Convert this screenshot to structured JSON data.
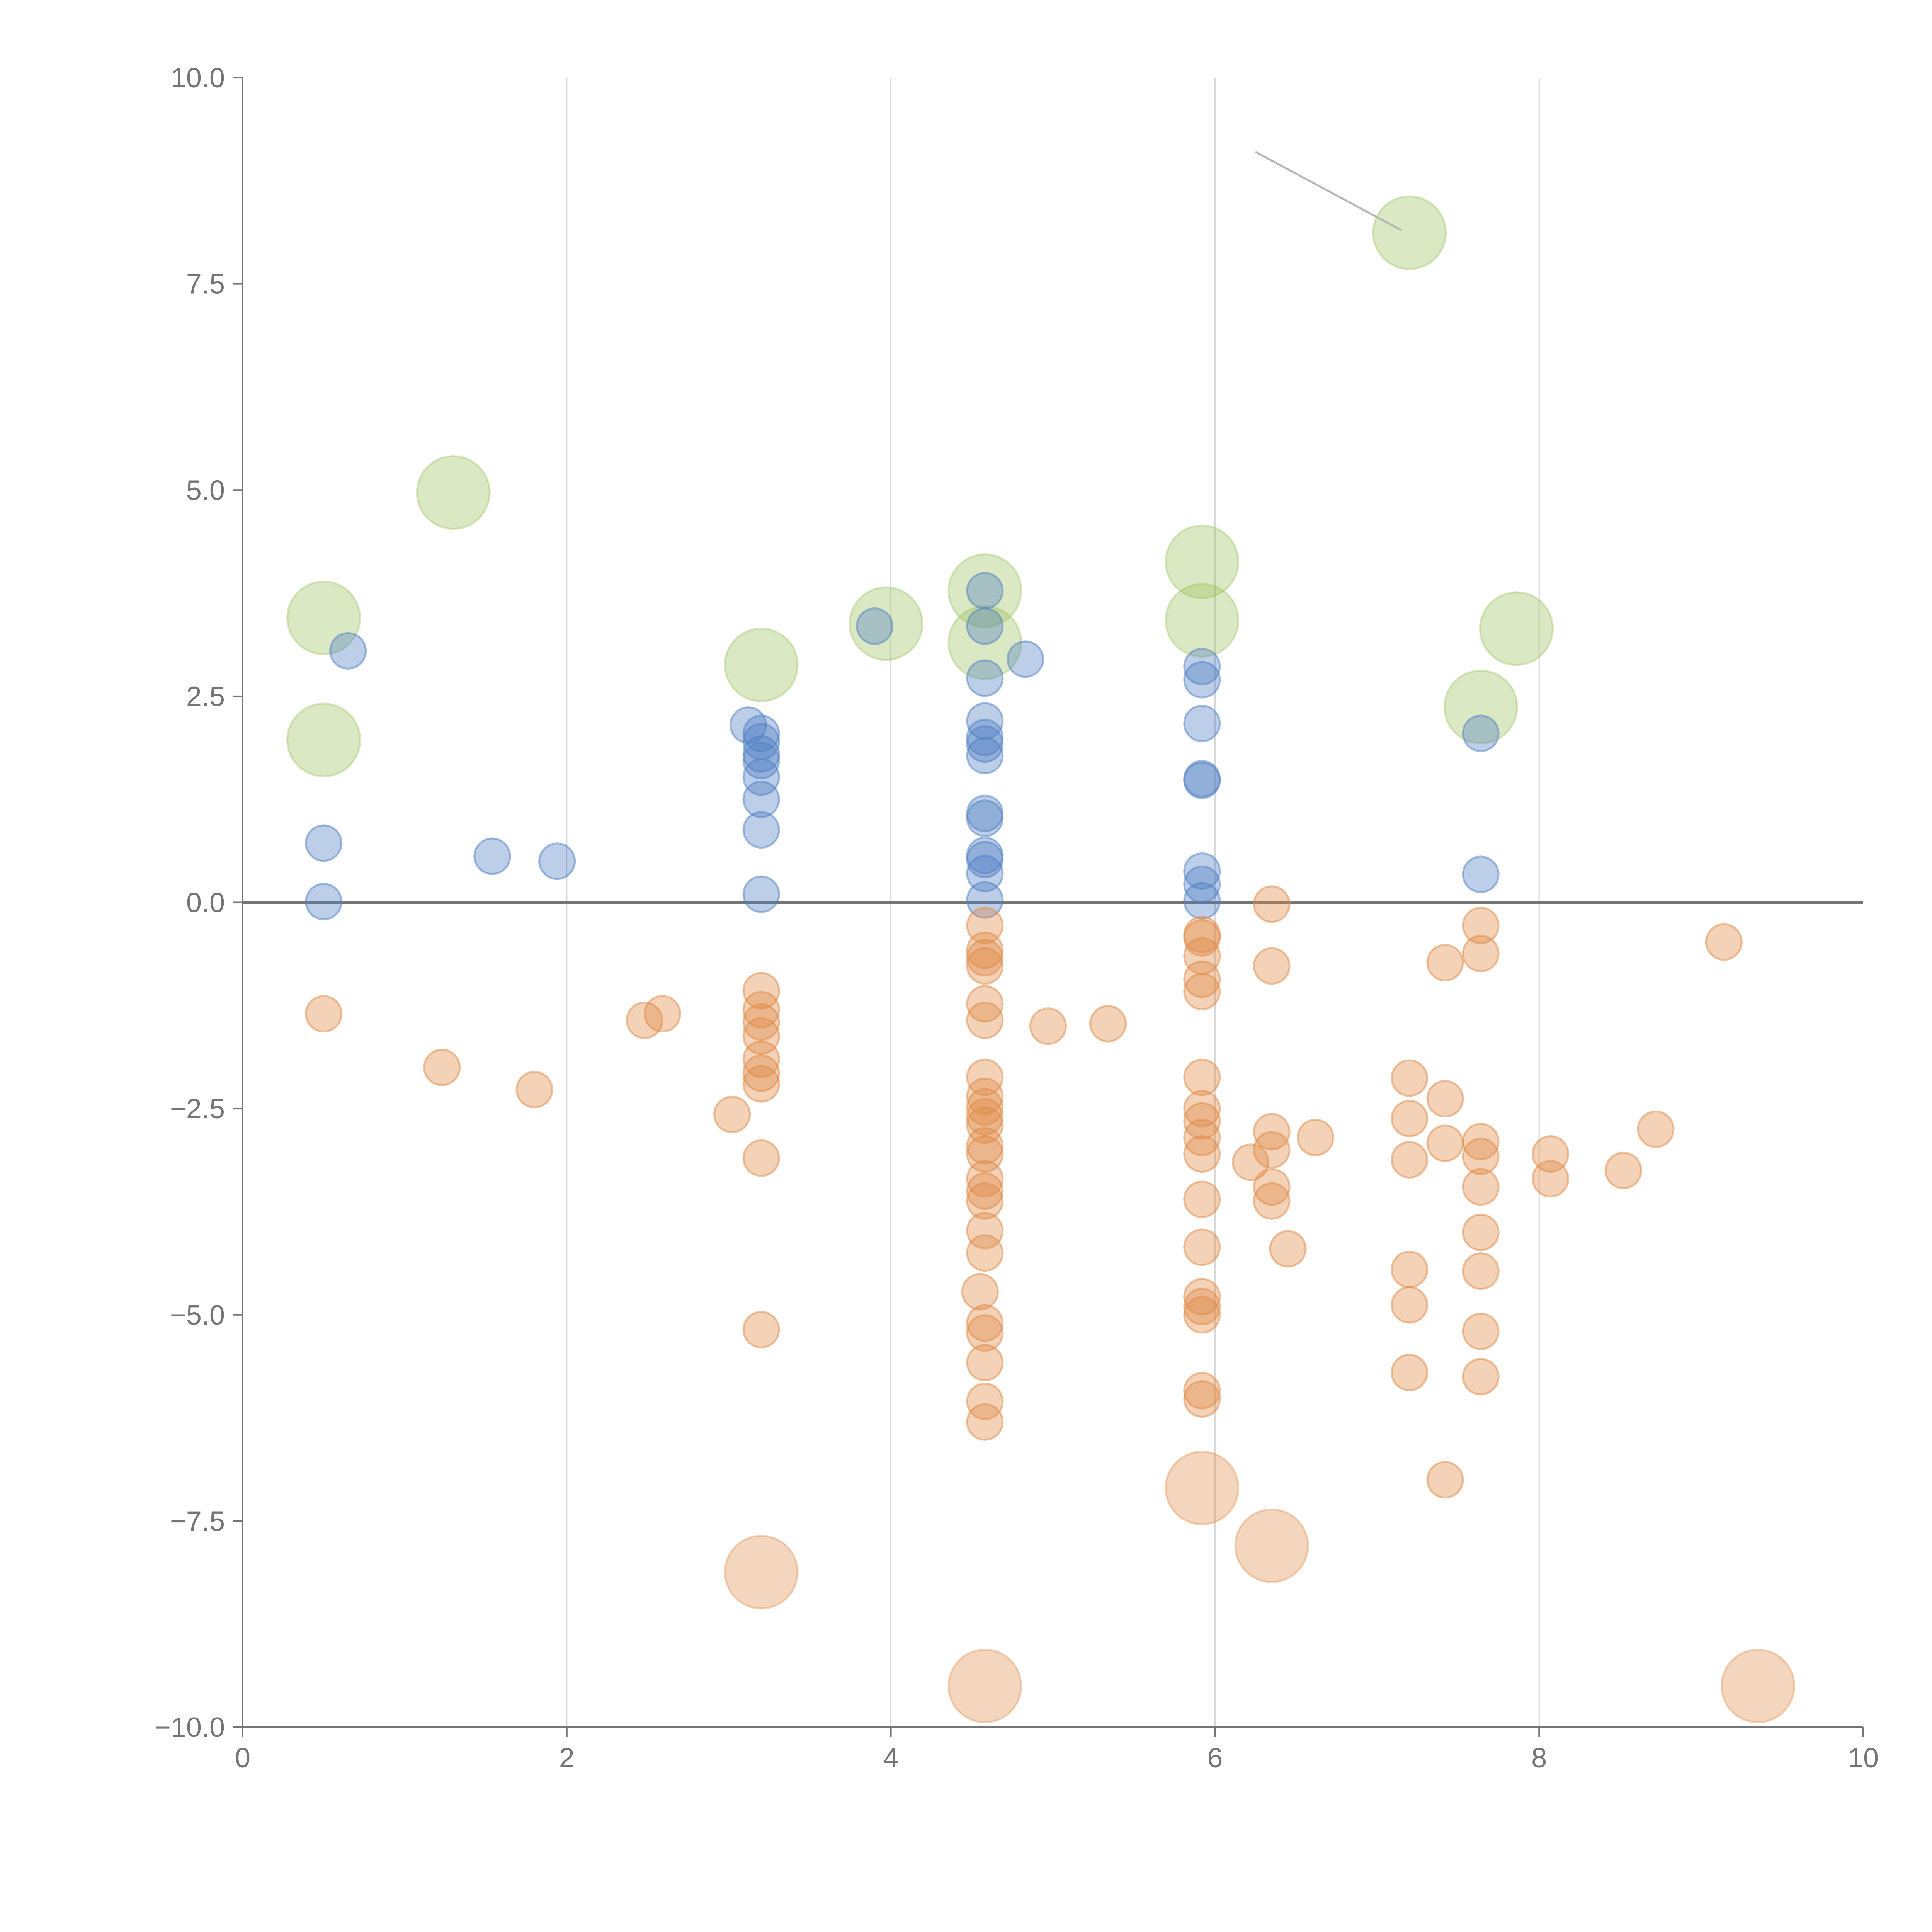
{
  "chart_data": {
    "type": "scatter",
    "title": "",
    "xlabel": "",
    "ylabel": "",
    "xlim": [
      0,
      10
    ],
    "ylim": [
      -10,
      10
    ],
    "x_ticks": [
      "0",
      "2",
      "4",
      "6",
      "8",
      "10"
    ],
    "y_ticks": [
      "10.0",
      "7.5",
      "5.0",
      "2.5",
      "0.0",
      "−2.5",
      "−5.0",
      "−7.5",
      "−10.0"
    ],
    "x_tick_values": [
      0,
      2,
      4,
      6,
      8,
      10
    ],
    "y_tick_values": [
      10,
      7.5,
      5,
      2.5,
      0,
      -2.5,
      -5,
      -7.5,
      -10
    ],
    "grid": "vertical",
    "reference_line_y": 0,
    "colors": {
      "blue": "#4f7fc3",
      "orange": "#e08a45",
      "green": "#97be55",
      "axis": "#757575",
      "grid": "#d6d6d6"
    },
    "series": [
      {
        "color": "#4f7fc3",
        "size": "small",
        "points": [
          [
            0.5,
            0.72
          ],
          [
            0.5,
            0.01
          ],
          [
            0.65,
            3.05
          ],
          [
            1.54,
            0.56
          ],
          [
            1.94,
            0.5
          ],
          [
            3.12,
            2.15
          ],
          [
            3.2,
            2.05
          ],
          [
            3.2,
            1.95
          ],
          [
            3.2,
            1.8
          ],
          [
            3.2,
            1.72
          ],
          [
            3.2,
            1.52
          ],
          [
            3.2,
            1.25
          ],
          [
            3.2,
            0.88
          ],
          [
            3.2,
            0.1
          ],
          [
            3.9,
            3.35
          ],
          [
            4.58,
            3.78
          ],
          [
            4.58,
            3.35
          ],
          [
            4.58,
            2.72
          ],
          [
            4.58,
            2.2
          ],
          [
            4.58,
            2.0
          ],
          [
            4.58,
            1.92
          ],
          [
            4.58,
            1.78
          ],
          [
            4.58,
            1.08
          ],
          [
            4.58,
            1.02
          ],
          [
            4.58,
            0.57
          ],
          [
            4.58,
            0.52
          ],
          [
            4.58,
            0.35
          ],
          [
            4.58,
            0.03
          ],
          [
            4.83,
            2.95
          ],
          [
            5.92,
            2.86
          ],
          [
            5.92,
            2.7
          ],
          [
            5.92,
            2.17
          ],
          [
            5.92,
            1.5
          ],
          [
            5.92,
            1.48
          ],
          [
            5.92,
            0.38
          ],
          [
            5.92,
            0.22
          ],
          [
            5.92,
            0.02
          ],
          [
            7.64,
            2.05
          ],
          [
            7.64,
            0.34
          ]
        ]
      },
      {
        "color": "#e08a45",
        "size": "small",
        "points": [
          [
            0.5,
            -1.35
          ],
          [
            1.23,
            -2.0
          ],
          [
            1.8,
            -2.27
          ],
          [
            2.48,
            -1.43
          ],
          [
            2.59,
            -1.35
          ],
          [
            3.02,
            -2.57
          ],
          [
            3.2,
            -1.07
          ],
          [
            3.2,
            -1.3
          ],
          [
            3.2,
            -1.45
          ],
          [
            3.2,
            -1.62
          ],
          [
            3.2,
            -1.9
          ],
          [
            3.2,
            -2.07
          ],
          [
            3.2,
            -2.2
          ],
          [
            3.2,
            -3.1
          ],
          [
            3.2,
            -5.18
          ],
          [
            4.58,
            -0.28
          ],
          [
            4.58,
            -0.58
          ],
          [
            4.58,
            -0.67
          ],
          [
            4.58,
            -0.77
          ],
          [
            4.58,
            -1.23
          ],
          [
            4.58,
            -1.43
          ],
          [
            4.58,
            -2.12
          ],
          [
            4.58,
            -2.35
          ],
          [
            4.58,
            -2.48
          ],
          [
            4.58,
            -2.6
          ],
          [
            4.58,
            -2.7
          ],
          [
            4.58,
            -2.95
          ],
          [
            4.58,
            -3.05
          ],
          [
            4.58,
            -3.35
          ],
          [
            4.58,
            -3.5
          ],
          [
            4.58,
            -3.62
          ],
          [
            4.58,
            -3.98
          ],
          [
            4.58,
            -4.25
          ],
          [
            4.55,
            -4.72
          ],
          [
            4.58,
            -5.1
          ],
          [
            4.58,
            -5.22
          ],
          [
            4.58,
            -5.58
          ],
          [
            4.58,
            -6.05
          ],
          [
            4.58,
            -6.3
          ],
          [
            4.97,
            -1.5
          ],
          [
            5.34,
            -1.47
          ],
          [
            5.92,
            -0.43
          ],
          [
            5.92,
            -0.39
          ],
          [
            5.92,
            -0.65
          ],
          [
            5.92,
            -0.93
          ],
          [
            5.92,
            -1.08
          ],
          [
            5.92,
            -2.12
          ],
          [
            5.92,
            -2.5
          ],
          [
            5.92,
            -2.65
          ],
          [
            5.92,
            -2.85
          ],
          [
            5.92,
            -3.05
          ],
          [
            5.92,
            -3.6
          ],
          [
            5.92,
            -4.18
          ],
          [
            5.92,
            -4.78
          ],
          [
            5.92,
            -4.9
          ],
          [
            5.92,
            -5.0
          ],
          [
            5.92,
            -5.92
          ],
          [
            5.92,
            -6.02
          ],
          [
            6.22,
            -3.15
          ],
          [
            6.35,
            -0.02
          ],
          [
            6.35,
            -0.77
          ],
          [
            6.35,
            -2.78
          ],
          [
            6.35,
            -3.0
          ],
          [
            6.35,
            -3.45
          ],
          [
            6.35,
            -3.62
          ],
          [
            6.45,
            -4.2
          ],
          [
            6.62,
            -2.85
          ],
          [
            7.2,
            -2.13
          ],
          [
            7.2,
            -2.62
          ],
          [
            7.2,
            -3.12
          ],
          [
            7.2,
            -4.45
          ],
          [
            7.2,
            -4.88
          ],
          [
            7.2,
            -5.7
          ],
          [
            7.42,
            -0.73
          ],
          [
            7.42,
            -2.38
          ],
          [
            7.42,
            -2.92
          ],
          [
            7.42,
            -7.0
          ],
          [
            7.64,
            -0.28
          ],
          [
            7.64,
            -0.62
          ],
          [
            7.64,
            -2.9
          ],
          [
            7.64,
            -3.08
          ],
          [
            7.64,
            -3.45
          ],
          [
            7.64,
            -4.0
          ],
          [
            7.64,
            -4.47
          ],
          [
            7.64,
            -5.2
          ],
          [
            7.64,
            -5.75
          ],
          [
            8.07,
            -3.05
          ],
          [
            8.07,
            -3.35
          ],
          [
            8.52,
            -3.25
          ],
          [
            8.72,
            -2.75
          ],
          [
            9.14,
            -0.48
          ]
        ]
      },
      {
        "color": "#e08a45",
        "size": "large",
        "points": [
          [
            3.2,
            -8.12
          ],
          [
            4.58,
            -9.5
          ],
          [
            5.92,
            -7.1
          ],
          [
            6.35,
            -7.8
          ],
          [
            9.35,
            -9.5
          ]
        ]
      },
      {
        "color": "#97be55",
        "size": "large",
        "points": [
          [
            0.5,
            3.45
          ],
          [
            0.5,
            1.97
          ],
          [
            1.3,
            4.97
          ],
          [
            3.2,
            2.88
          ],
          [
            3.97,
            3.38
          ],
          [
            4.58,
            3.78
          ],
          [
            4.58,
            3.15
          ],
          [
            5.92,
            4.13
          ],
          [
            5.92,
            3.42
          ],
          [
            7.2,
            8.12
          ],
          [
            7.64,
            2.37
          ],
          [
            7.86,
            3.32
          ]
        ]
      }
    ]
  }
}
